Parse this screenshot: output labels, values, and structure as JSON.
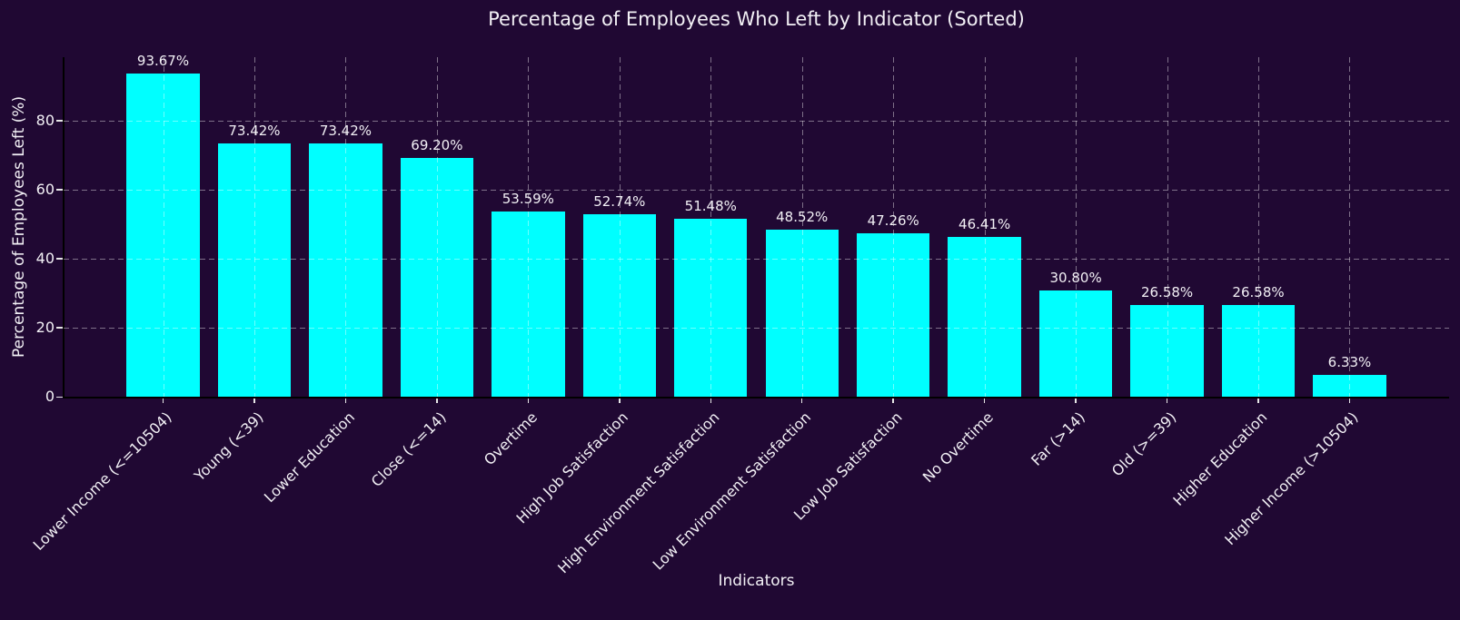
{
  "chart_data": {
    "type": "bar",
    "title": "Percentage of Employees Who Left by Indicator (Sorted)",
    "xlabel": "Indicators",
    "ylabel": "Percentage of Employees Left (%)",
    "categories": [
      "Lower Income (<=10504)",
      "Young (<39)",
      "Lower Education",
      "Close (<=14)",
      "Overtime",
      "High Job Satisfaction",
      "High Environment Satisfaction",
      "Low Environment Satisfaction",
      "Low Job Satisfaction",
      "No Overtime",
      "Far (>14)",
      "Old (>=39)",
      "Higher Education",
      "Higher Income (>10504)"
    ],
    "values": [
      93.67,
      73.42,
      73.42,
      69.2,
      53.59,
      52.74,
      51.48,
      48.52,
      47.26,
      46.41,
      30.8,
      26.58,
      26.58,
      6.33
    ],
    "bar_labels": [
      "93.67%",
      "73.42%",
      "73.42%",
      "69.20%",
      "53.59%",
      "52.74%",
      "51.48%",
      "48.52%",
      "47.26%",
      "46.41%",
      "30.80%",
      "26.58%",
      "26.58%",
      "6.33%"
    ],
    "yticks": [
      0,
      20,
      40,
      60,
      80
    ],
    "ylim": [
      0,
      98.35
    ],
    "grid": true,
    "legend": "none",
    "bar_color": "#00ffff",
    "background_color": "#200833",
    "text_color": "#f2f0f5",
    "grid_color": "rgba(255,255,255,0.42)"
  }
}
